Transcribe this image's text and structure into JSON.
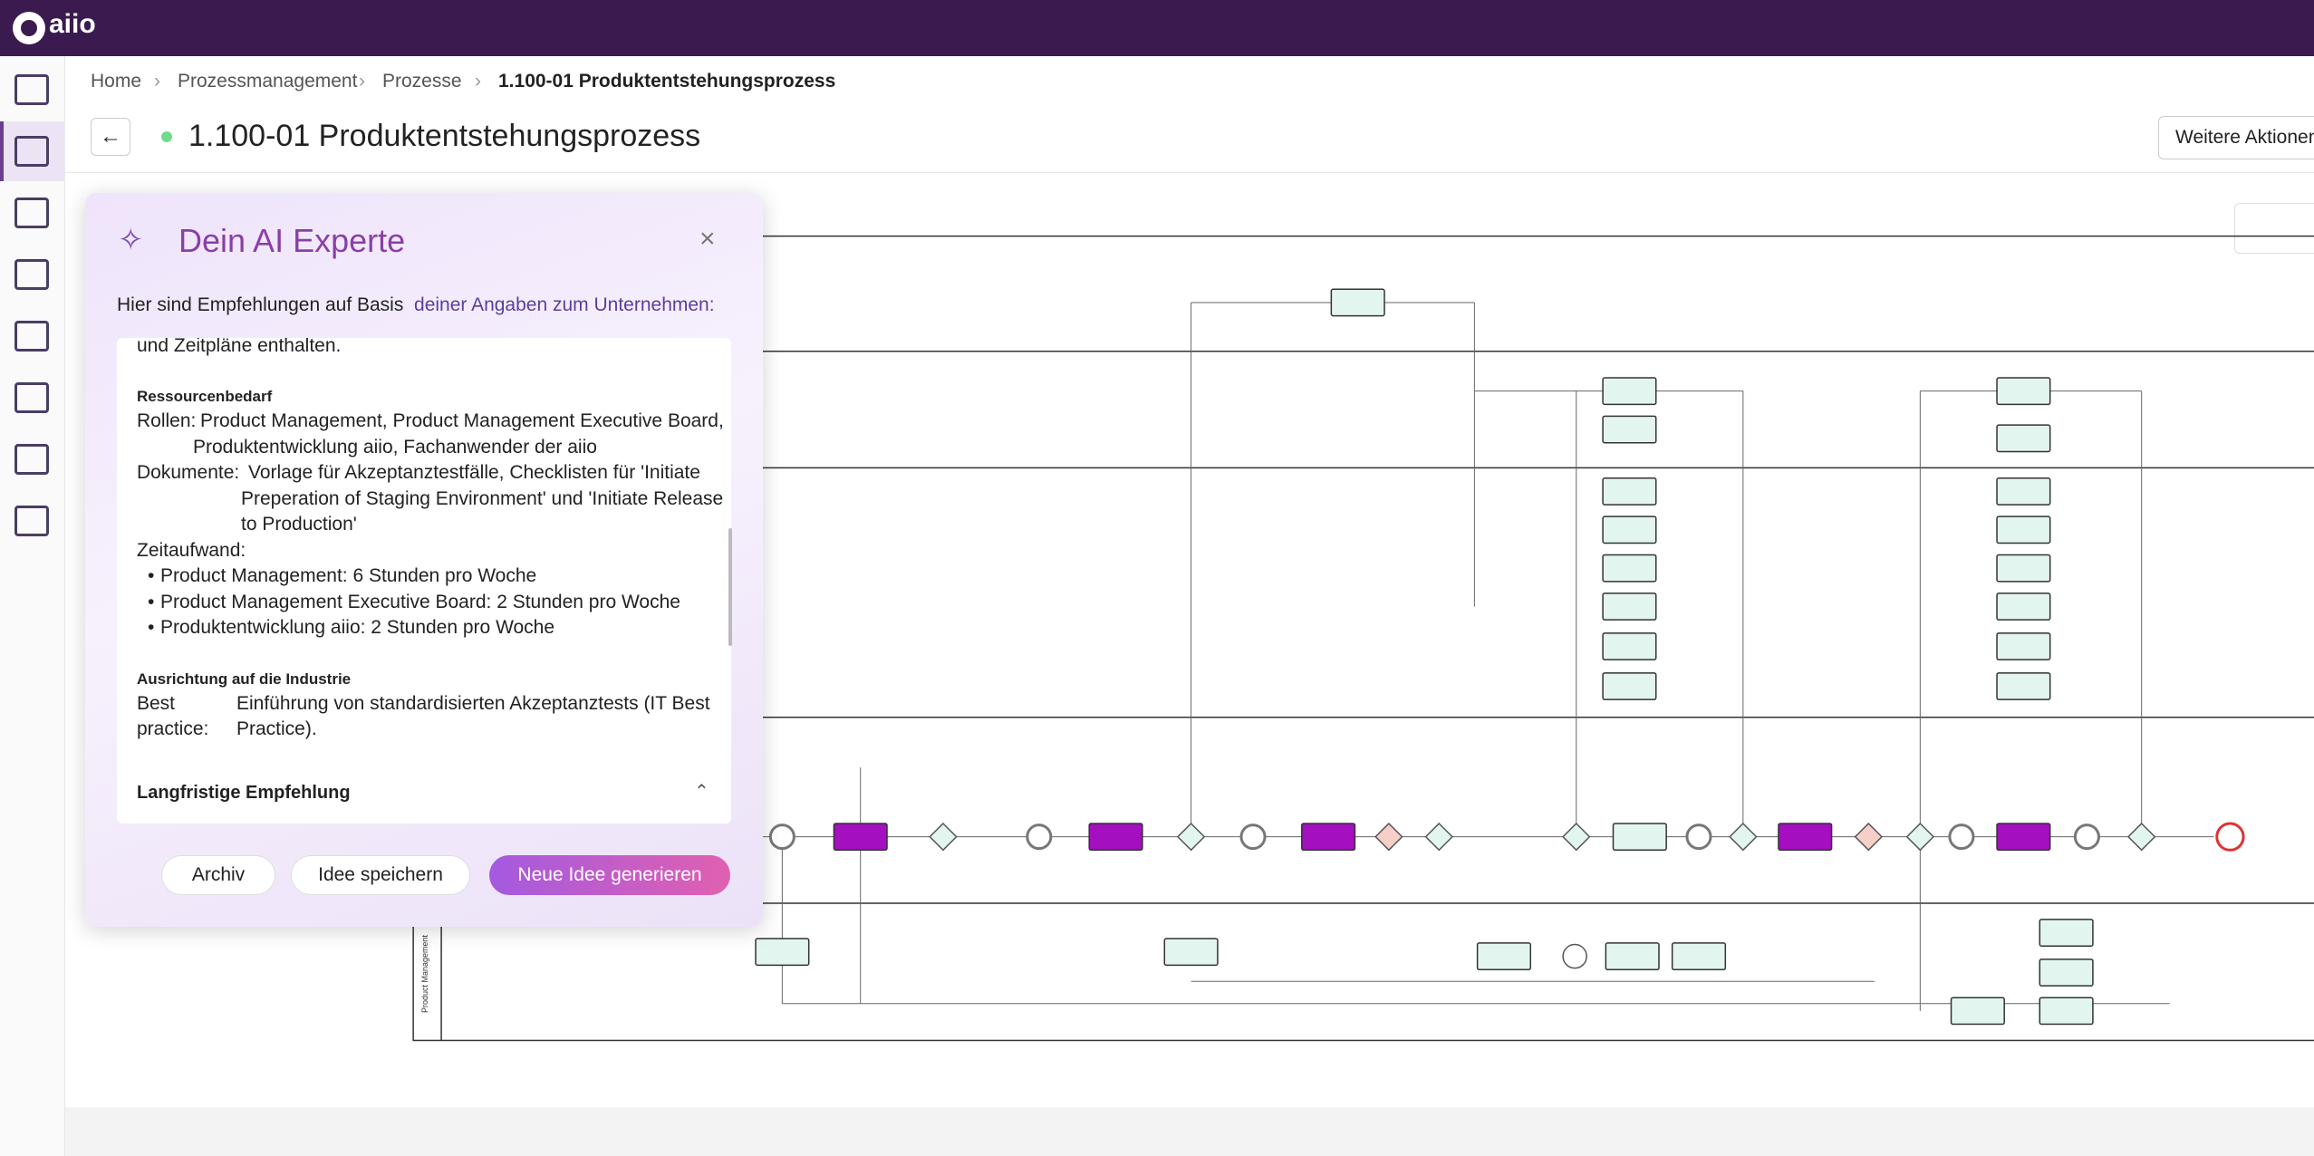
{
  "topbar": {
    "logo": "aiio"
  },
  "breadcrumb": [
    "Home",
    "Prozessmanagement",
    "Prozesse",
    "1.100-01 Produktentstehungsprozess"
  ],
  "header": {
    "title": "1.100-01 Produktentstehungsprozess",
    "action": "Weitere Aktionen"
  },
  "ai_panel": {
    "title": "Dein AI Experte",
    "intro": "Hier sind Empfehlungen auf Basis",
    "intro_link": "deiner Angaben zum Unternehmen:",
    "content": {
      "lead": "und Zeitpläne enthalten.",
      "resources": {
        "heading": "Ressourcenbedarf",
        "rollen": {
          "label": "Rollen:",
          "lines": [
            "Product Management, Product Management Executive Board,",
            "Produktentwicklung aiio, Fachanwender der aiio"
          ]
        },
        "dokumente": {
          "label": "Dokumente:",
          "lines": [
            "Vorlage für Akzeptanztestfälle, Checklisten für 'Initiate",
            "Preperation of Staging Environment' und 'Initiate Release",
            "to Production'"
          ]
        },
        "zeitaufwand": {
          "label": "Zeitaufwand:",
          "items": [
            "Product Management: 6 Stunden pro Woche",
            "Product Management Executive Board: 2 Stunden pro Woche",
            "Produktentwicklung aiio: 2 Stunden pro Woche"
          ]
        }
      },
      "industry": {
        "heading": "Ausrichtung auf die Industrie",
        "best_practice": {
          "label": [
            "Best",
            "practice:"
          ],
          "lines": [
            "Einführung von standardisierten Akzeptanztests (IT Best",
            "Practice)."
          ]
        }
      }
    },
    "section": "Langfristige Empfehlung",
    "buttons": [
      "Archiv",
      "Idee speichern",
      "Neue Idee generieren"
    ]
  },
  "diagram": {
    "lane_label": "Product Management"
  }
}
